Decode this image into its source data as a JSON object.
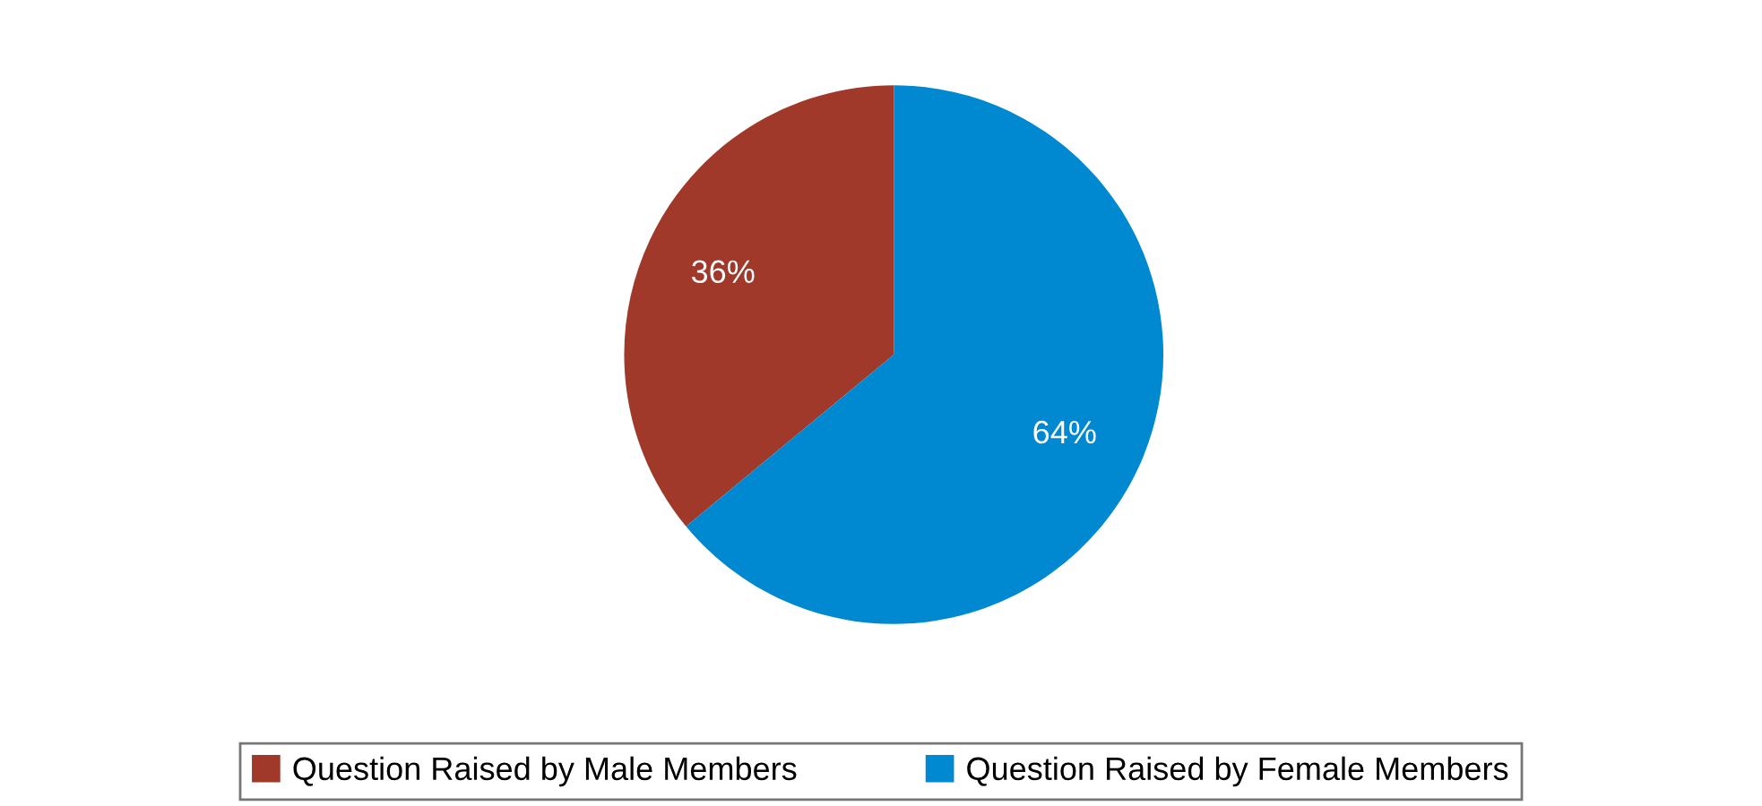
{
  "chart_data": {
    "type": "pie",
    "categories": [
      "Question Raised by Male Members",
      "Question Raised by Female Members"
    ],
    "values": [
      36,
      64
    ],
    "colors": [
      "#a0392a",
      "#0088d1"
    ],
    "value_labels": [
      "36%",
      "64%"
    ],
    "legend": "bottom"
  }
}
